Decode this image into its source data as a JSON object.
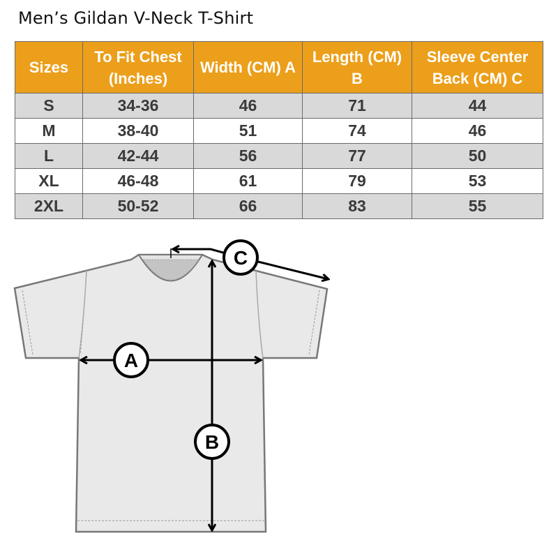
{
  "title": "Men’s Gildan V-Neck T-Shirt",
  "colors": {
    "header_bg": "#ec9f1a",
    "stripe": "#d9d9d9",
    "text": "#3a3a3a"
  },
  "table": {
    "headers": [
      "Sizes",
      "To Fit Chest (Inches)",
      "Width (CM) A",
      "Length  (CM) B",
      "Sleeve Center Back (CM) C"
    ],
    "rows": [
      [
        "S",
        "34-36",
        "46",
        "71",
        "44"
      ],
      [
        "M",
        "38-40",
        "51",
        "74",
        "46"
      ],
      [
        "L",
        "42-44",
        "56",
        "77",
        "50"
      ],
      [
        "XL",
        "46-48",
        "61",
        "79",
        "53"
      ],
      [
        "2XL",
        "50-52",
        "66",
        "83",
        "55"
      ]
    ]
  },
  "diagram": {
    "labels": {
      "a": "A",
      "b": "B",
      "c": "C"
    }
  }
}
